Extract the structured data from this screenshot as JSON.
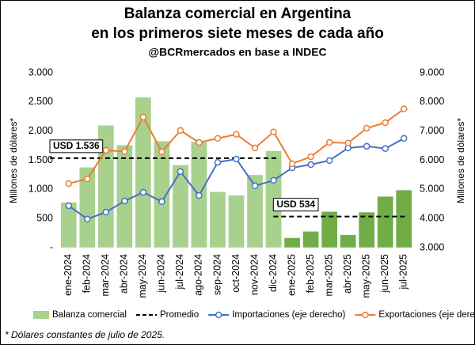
{
  "chart_data": {
    "type": "bar",
    "title": [
      "Balanza comercial en Argentina",
      "en los primeros siete meses de cada año"
    ],
    "subtitle": "@BCRmercados en base a INDEC",
    "ylabel": "Millones de dólares*",
    "y2label": "Millones de dólares*",
    "footnote": "* Dólares constantes de julio de 2025.",
    "categories": [
      "ene-2024",
      "feb-2024",
      "mar-2024",
      "abr-2024",
      "may-2024",
      "jun-2024",
      "jul-2024",
      "ago-2024",
      "sep-2024",
      "oct-2024",
      "nov-2024",
      "dic-2024",
      "ene-2025",
      "feb-2025",
      "mar-2025",
      "abr-2025",
      "may-2025",
      "jun-2025",
      "jul-2025"
    ],
    "ylim": [
      0,
      3000
    ],
    "yticks": [
      {
        "value": 0,
        "label": "-"
      },
      {
        "value": 500,
        "label": "500"
      },
      {
        "value": 1000,
        "label": "1.000"
      },
      {
        "value": 1500,
        "label": "1.500"
      },
      {
        "value": 2000,
        "label": "2.000"
      },
      {
        "value": 2500,
        "label": "2.500"
      },
      {
        "value": 3000,
        "label": "3.000"
      }
    ],
    "y2lim": [
      3000,
      9000
    ],
    "y2ticks": [
      {
        "value": 3000,
        "label": "3.000"
      },
      {
        "value": 4000,
        "label": "4.000"
      },
      {
        "value": 5000,
        "label": "5.000"
      },
      {
        "value": 6000,
        "label": "6.000"
      },
      {
        "value": 7000,
        "label": "7.000"
      },
      {
        "value": 8000,
        "label": "8.000"
      },
      {
        "value": 9000,
        "label": "9.000"
      }
    ],
    "series": [
      {
        "name": "Balanza comercial",
        "type": "bar",
        "color": "#a9d18e",
        "colors": [
          "#a9d18e",
          "#a9d18e",
          "#a9d18e",
          "#a9d18e",
          "#a9d18e",
          "#a9d18e",
          "#a9d18e",
          "#a9d18e",
          "#a9d18e",
          "#a9d18e",
          "#a9d18e",
          "#a9d18e",
          "#70ad47",
          "#70ad47",
          "#70ad47",
          "#70ad47",
          "#70ad47",
          "#70ad47",
          "#70ad47"
        ],
        "values": [
          780,
          1380,
          2100,
          1760,
          2580,
          1830,
          1420,
          1820,
          960,
          900,
          1250,
          1660,
          170,
          280,
          620,
          220,
          610,
          880,
          990
        ]
      },
      {
        "name": "Promedio",
        "type": "dashed",
        "color": "#000000",
        "values": [
          1536,
          1536,
          1536,
          1536,
          1536,
          1536,
          1536,
          1536,
          1536,
          1536,
          1536,
          1536,
          534,
          534,
          534,
          534,
          534,
          534,
          534
        ]
      },
      {
        "name": "Importaciones (eje derecho)",
        "type": "line",
        "axis": "y2",
        "color": "#4472c4",
        "values": [
          4440,
          3980,
          4220,
          4600,
          4900,
          4580,
          5610,
          4790,
          5930,
          6040,
          5120,
          5310,
          5740,
          5850,
          5990,
          6420,
          6480,
          6400,
          6750
        ]
      },
      {
        "name": "Exportaciones (eje derecho)",
        "type": "line",
        "axis": "y2",
        "color": "#ed7d31",
        "values": [
          5200,
          5360,
          6340,
          6300,
          7480,
          6290,
          7020,
          6610,
          6750,
          6890,
          6420,
          6970,
          5880,
          6120,
          6610,
          6590,
          7100,
          7290,
          7760
        ]
      }
    ],
    "annotations": [
      "USD 1.536",
      "USD 534"
    ]
  }
}
